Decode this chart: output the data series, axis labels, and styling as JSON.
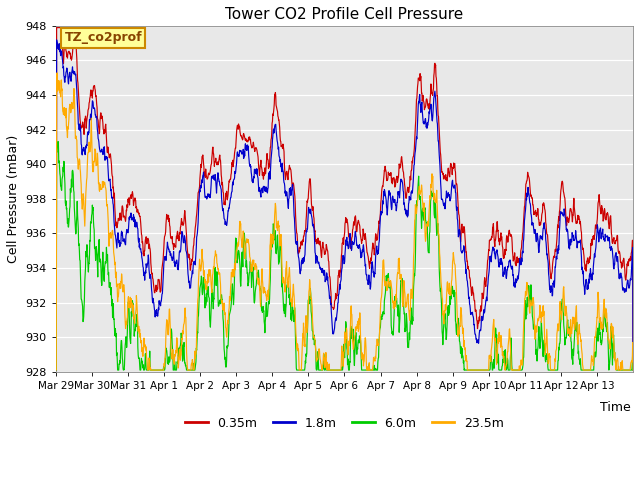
{
  "title": "Tower CO2 Profile Cell Pressure",
  "ylabel": "Cell Pressure (mBar)",
  "xlabel": "Time",
  "ylim": [
    928,
    948
  ],
  "yticks": [
    928,
    930,
    932,
    934,
    936,
    938,
    940,
    942,
    944,
    946,
    948
  ],
  "xtick_labels": [
    "Mar 29",
    "Mar 30",
    "Mar 31",
    "Apr 1",
    "Apr 2",
    "Apr 3",
    "Apr 4",
    "Apr 5",
    "Apr 6",
    "Apr 7",
    "Apr 8",
    "Apr 9",
    "Apr 10",
    "Apr 11",
    "Apr 12",
    "Apr 13"
  ],
  "legend_label": "TZ_co2prof",
  "series": [
    {
      "label": "0.35m",
      "color": "#cc0000"
    },
    {
      "label": "1.8m",
      "color": "#0000cc"
    },
    {
      "label": "6.0m",
      "color": "#00cc00"
    },
    {
      "label": "23.5m",
      "color": "#ffaa00"
    }
  ],
  "bg_color": "#e8e8e8",
  "legend_box_color": "#ffff99",
  "legend_box_edge": "#cc8800",
  "title_fontsize": 11,
  "axis_fontsize": 9,
  "tick_fontsize": 8
}
